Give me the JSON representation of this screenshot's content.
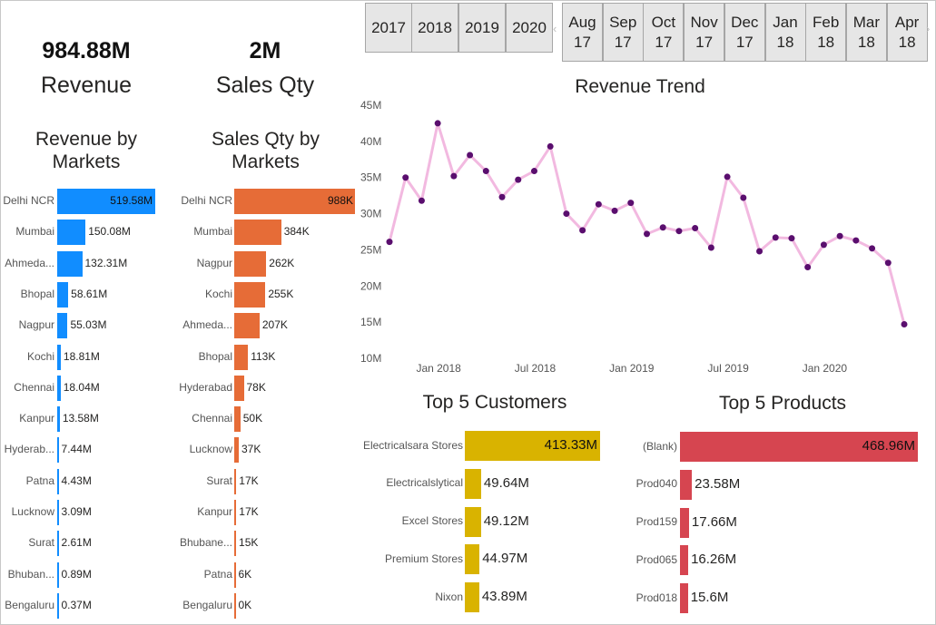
{
  "kpis": {
    "revenue": {
      "value": "984.88M",
      "label": "Revenue"
    },
    "sales_qty": {
      "value": "2M",
      "label": "Sales Qty"
    }
  },
  "year_slicer": [
    "2017",
    "2018",
    "2019",
    "2020"
  ],
  "month_slicer": [
    {
      "month": "Aug",
      "year": "17"
    },
    {
      "month": "Sep",
      "year": "17"
    },
    {
      "month": "Oct",
      "year": "17"
    },
    {
      "month": "Nov",
      "year": "17"
    },
    {
      "month": "Dec",
      "year": "17"
    },
    {
      "month": "Jan",
      "year": "18"
    },
    {
      "month": "Feb",
      "year": "18"
    },
    {
      "month": "Mar",
      "year": "18"
    },
    {
      "month": "Apr",
      "year": "18"
    }
  ],
  "slicer_arrows": {
    "left": "‹",
    "right": "›"
  },
  "colors": {
    "revenue_bar": "#118dff",
    "qty_bar": "#e66c37",
    "customer_bar": "#d9b300",
    "product_bar": "#d64550",
    "trend_line": "#f2b9e0",
    "trend_marker": "#5a0e6e",
    "slicer_bg": "#e6e6e6"
  },
  "revenue_by_markets": {
    "title": "Revenue by Markets",
    "rows": [
      {
        "label": "Delhi NCR",
        "value": 519.58,
        "display": "519.58M"
      },
      {
        "label": "Mumbai",
        "value": 150.08,
        "display": "150.08M"
      },
      {
        "label": "Ahmeda...",
        "value": 132.31,
        "display": "132.31M"
      },
      {
        "label": "Bhopal",
        "value": 58.61,
        "display": "58.61M"
      },
      {
        "label": "Nagpur",
        "value": 55.03,
        "display": "55.03M"
      },
      {
        "label": "Kochi",
        "value": 18.81,
        "display": "18.81M"
      },
      {
        "label": "Chennai",
        "value": 18.04,
        "display": "18.04M"
      },
      {
        "label": "Kanpur",
        "value": 13.58,
        "display": "13.58M"
      },
      {
        "label": "Hyderab...",
        "value": 7.44,
        "display": "7.44M"
      },
      {
        "label": "Patna",
        "value": 4.43,
        "display": "4.43M"
      },
      {
        "label": "Lucknow",
        "value": 3.09,
        "display": "3.09M"
      },
      {
        "label": "Surat",
        "value": 2.61,
        "display": "2.61M"
      },
      {
        "label": "Bhuban...",
        "value": 0.89,
        "display": "0.89M"
      },
      {
        "label": "Bengaluru",
        "value": 0.37,
        "display": "0.37M"
      }
    ]
  },
  "qty_by_markets": {
    "title": "Sales Qty by Markets",
    "rows": [
      {
        "label": "Delhi NCR",
        "value": 988,
        "display": "988K"
      },
      {
        "label": "Mumbai",
        "value": 384,
        "display": "384K"
      },
      {
        "label": "Nagpur",
        "value": 262,
        "display": "262K"
      },
      {
        "label": "Kochi",
        "value": 255,
        "display": "255K"
      },
      {
        "label": "Ahmeda...",
        "value": 207,
        "display": "207K"
      },
      {
        "label": "Bhopal",
        "value": 113,
        "display": "113K"
      },
      {
        "label": "Hyderabad",
        "value": 78,
        "display": "78K"
      },
      {
        "label": "Chennai",
        "value": 50,
        "display": "50K"
      },
      {
        "label": "Lucknow",
        "value": 37,
        "display": "37K"
      },
      {
        "label": "Surat",
        "value": 17,
        "display": "17K"
      },
      {
        "label": "Kanpur",
        "value": 17,
        "display": "17K"
      },
      {
        "label": "Bhubane...",
        "value": 15,
        "display": "15K"
      },
      {
        "label": "Patna",
        "value": 6,
        "display": "6K"
      },
      {
        "label": "Bengaluru",
        "value": 0,
        "display": "0K"
      }
    ]
  },
  "top_customers": {
    "title": "Top 5 Customers",
    "rows": [
      {
        "label": "Electricalsara Stores",
        "value": 413.33,
        "display": "413.33M"
      },
      {
        "label": "Electricalslytical",
        "value": 49.64,
        "display": "49.64M"
      },
      {
        "label": "Excel Stores",
        "value": 49.12,
        "display": "49.12M"
      },
      {
        "label": "Premium Stores",
        "value": 44.97,
        "display": "44.97M"
      },
      {
        "label": "Nixon",
        "value": 43.89,
        "display": "43.89M"
      }
    ]
  },
  "top_products": {
    "title": "Top 5 Products",
    "rows": [
      {
        "label": "(Blank)",
        "value": 468.96,
        "display": "468.96M"
      },
      {
        "label": "Prod040",
        "value": 23.58,
        "display": "23.58M"
      },
      {
        "label": "Prod159",
        "value": 17.66,
        "display": "17.66M"
      },
      {
        "label": "Prod065",
        "value": 16.26,
        "display": "16.26M"
      },
      {
        "label": "Prod018",
        "value": 15.6,
        "display": "15.6M"
      }
    ]
  },
  "chart_data": {
    "type": "line",
    "title": "Revenue Trend",
    "xlabel": "",
    "ylabel": "",
    "x_tick_labels": [
      "Jan 2018",
      "Jul 2018",
      "Jan 2019",
      "Jul 2019",
      "Jan 2020"
    ],
    "y_tick_labels": [
      "45M",
      "40M",
      "35M",
      "30M",
      "25M",
      "20M",
      "15M",
      "10M"
    ],
    "ylim": [
      10,
      45
    ],
    "grid": false,
    "x": [
      "2017-10",
      "2017-11",
      "2017-12",
      "2018-01",
      "2018-02",
      "2018-03",
      "2018-04",
      "2018-05",
      "2018-06",
      "2018-07",
      "2018-08",
      "2018-09",
      "2018-10",
      "2018-11",
      "2018-12",
      "2019-01",
      "2019-02",
      "2019-03",
      "2019-04",
      "2019-05",
      "2019-06",
      "2019-07",
      "2019-08",
      "2019-09",
      "2019-10",
      "2019-11",
      "2019-12",
      "2020-01",
      "2020-02",
      "2020-03",
      "2020-04",
      "2020-05",
      "2020-06"
    ],
    "series": [
      {
        "values": [
          26.1,
          35.0,
          31.8,
          42.5,
          35.2,
          38.1,
          35.9,
          32.3,
          34.7,
          35.9,
          39.3,
          30.0,
          27.7,
          31.3,
          30.4,
          31.5,
          27.2,
          28.1,
          27.6,
          28.0,
          25.3,
          35.1,
          32.2,
          24.8,
          26.7,
          26.6,
          22.6,
          25.7,
          26.9,
          26.3,
          25.2,
          23.2,
          14.7
        ]
      }
    ]
  }
}
